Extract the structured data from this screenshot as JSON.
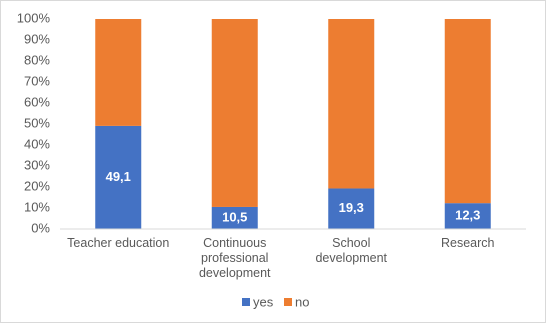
{
  "chart_data": {
    "type": "stacked_percent_bar",
    "categories": [
      "Teacher education",
      "Continuous professional development",
      "School development",
      "Research"
    ],
    "series": [
      {
        "name": "yes",
        "color": "#4472c4",
        "values": [
          49.1,
          10.5,
          19.3,
          12.3
        ],
        "value_labels": [
          "49,1",
          "10,5",
          "19,3",
          "12,3"
        ]
      },
      {
        "name": "no",
        "color": "#ed7d31",
        "values": [
          50.9,
          89.5,
          80.7,
          87.7
        ]
      }
    ],
    "ylim": [
      0,
      100
    ],
    "yticks": [
      {
        "value": 0,
        "label": "0%"
      },
      {
        "value": 10,
        "label": "10%"
      },
      {
        "value": 20,
        "label": "20%"
      },
      {
        "value": 30,
        "label": "30%"
      },
      {
        "value": 40,
        "label": "40%"
      },
      {
        "value": 50,
        "label": "50%"
      },
      {
        "value": 60,
        "label": "60%"
      },
      {
        "value": 70,
        "label": "70%"
      },
      {
        "value": 80,
        "label": "80%"
      },
      {
        "value": 90,
        "label": "90%"
      },
      {
        "value": 100,
        "label": "100%"
      }
    ],
    "grid": false,
    "legend": "bottom"
  }
}
